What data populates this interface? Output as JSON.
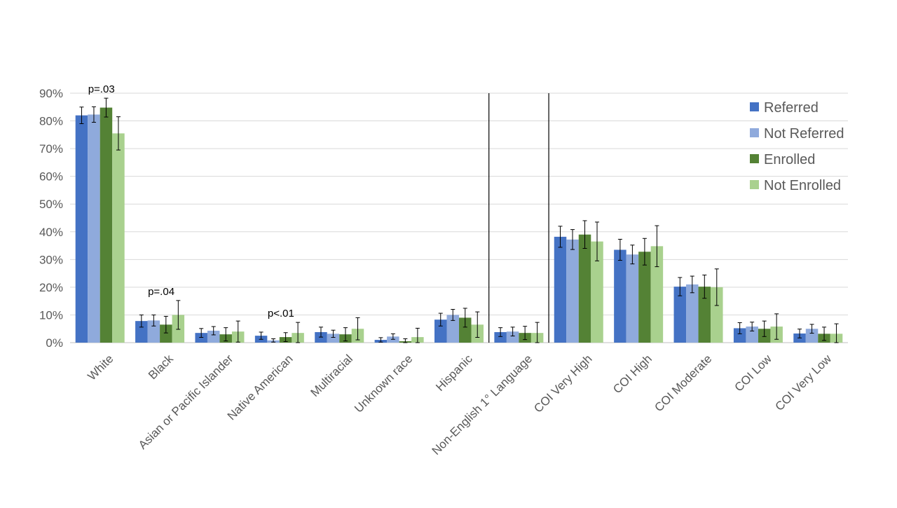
{
  "chart_data": {
    "type": "bar",
    "title": "",
    "xlabel": "",
    "ylabel": "",
    "ylim": [
      0,
      90
    ],
    "y_ticks": [
      "0%",
      "10%",
      "20%",
      "30%",
      "40%",
      "50%",
      "60%",
      "70%",
      "80%",
      "90%"
    ],
    "grid": "horizontal",
    "legend_position": "top-right",
    "categories": [
      "White",
      "Black",
      "Asian or Pacific Islander",
      "Native American",
      "Multiracial",
      "Unknown race",
      "Hispanic",
      "Non-English 1° Language",
      "COI Very High",
      "COI High",
      "COI Moderate",
      "COI Low",
      "COI Very Low"
    ],
    "series": [
      {
        "name": "Referred",
        "color": "#4472C4",
        "values": [
          82,
          7.8,
          3.5,
          2.5,
          3.8,
          1.0,
          8.3,
          3.8,
          38.2,
          33.5,
          20.2,
          5.2,
          3.3
        ],
        "errors": [
          3,
          2.2,
          1.6,
          1.3,
          1.8,
          0.8,
          2.3,
          1.6,
          3.8,
          3.8,
          3.3,
          2.0,
          1.6
        ]
      },
      {
        "name": "Not Referred",
        "color": "#8FAADC",
        "values": [
          82.3,
          8.0,
          4.3,
          0.8,
          3.2,
          2.2,
          10.0,
          4.0,
          37.2,
          31.8,
          21.0,
          5.8,
          5.0
        ],
        "errors": [
          2.8,
          2.0,
          1.5,
          0.6,
          1.3,
          1.0,
          2.0,
          1.6,
          3.6,
          3.4,
          3.0,
          1.6,
          1.6
        ]
      },
      {
        "name": "Enrolled",
        "color": "#548235",
        "values": [
          84.8,
          6.5,
          3.0,
          2.0,
          3.0,
          0.5,
          9.0,
          3.5,
          39.0,
          32.8,
          20.2,
          5.0,
          3.2
        ],
        "errors": [
          3.4,
          3.0,
          2.4,
          1.6,
          2.4,
          0.9,
          3.4,
          2.4,
          5.0,
          4.8,
          4.2,
          2.8,
          2.4
        ]
      },
      {
        "name": "Not Enrolled",
        "color": "#A9D18E",
        "values": [
          75.5,
          10.0,
          4.0,
          3.5,
          5.0,
          2.0,
          6.5,
          3.5,
          36.5,
          34.8,
          20.0,
          5.8,
          3.2
        ],
        "errors": [
          6,
          5.2,
          3.8,
          3.8,
          4.0,
          3.2,
          4.6,
          3.8,
          7.0,
          7.4,
          6.6,
          4.6,
          3.6
        ]
      }
    ],
    "annotations": [
      {
        "category": "White",
        "text": "p=.03"
      },
      {
        "category": "Black",
        "text": "p=.04"
      },
      {
        "category": "Native American",
        "text": "p<.01"
      }
    ],
    "separators_after_categories": [
      "Hispanic",
      "Non-English 1° Language"
    ]
  }
}
